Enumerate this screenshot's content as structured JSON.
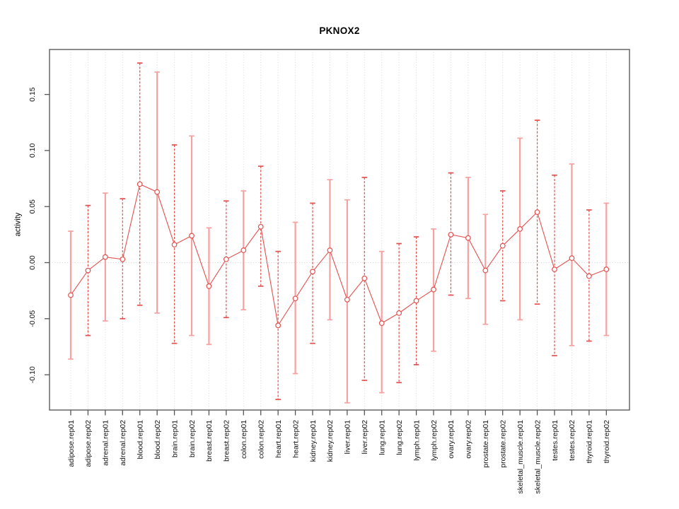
{
  "chart_data": {
    "type": "errorbar",
    "title": "PKNOX2",
    "ylabel": "activity",
    "xlabel": "",
    "legend_position": "none",
    "grid": {
      "vertical_per_category": true,
      "zero_line_dotted": true
    },
    "ylim": [
      -0.132,
      0.192
    ],
    "yticks": [
      "-0.10",
      "-0.05",
      "0.00",
      "0.05",
      "0.10",
      "0.15"
    ],
    "categories": [
      "adipose.rep01",
      "adipose.rep02",
      "adrenal.rep01",
      "adrenal.rep02",
      "blood.rep01",
      "blood.rep02",
      "brain.rep01",
      "brain.rep02",
      "breast.rep01",
      "breast.rep02",
      "colon.rep01",
      "colon.rep02",
      "heart.rep01",
      "heart.rep02",
      "kidney.rep01",
      "kidney.rep02",
      "liver.rep01",
      "liver.rep02",
      "lung.rep01",
      "lung.rep02",
      "lymph.rep01",
      "lymph.rep02",
      "ovary.rep01",
      "ovary.rep02",
      "prostate.rep01",
      "prostate.rep02",
      "skeletal_muscle.rep01",
      "skeletal_muscle.rep02",
      "testes.rep01",
      "testes.rep02",
      "thyroid.rep01",
      "thyroid.rep02"
    ],
    "series": [
      {
        "name": "activity",
        "marker": "open-circle",
        "connected": true,
        "points": [
          {
            "category": "adipose.rep01",
            "value": -0.029,
            "lower": -0.086,
            "upper": 0.028,
            "stem_style": "solid"
          },
          {
            "category": "adipose.rep02",
            "value": -0.007,
            "lower": -0.065,
            "upper": 0.051,
            "stem_style": "dashed"
          },
          {
            "category": "adrenal.rep01",
            "value": 0.005,
            "lower": -0.052,
            "upper": 0.062,
            "stem_style": "solid"
          },
          {
            "category": "adrenal.rep02",
            "value": 0.003,
            "lower": -0.05,
            "upper": 0.057,
            "stem_style": "dashed"
          },
          {
            "category": "blood.rep01",
            "value": 0.07,
            "lower": -0.038,
            "upper": 0.178,
            "stem_style": "dashed"
          },
          {
            "category": "blood.rep02",
            "value": 0.063,
            "lower": -0.045,
            "upper": 0.17,
            "stem_style": "solid"
          },
          {
            "category": "brain.rep01",
            "value": 0.016,
            "lower": -0.072,
            "upper": 0.105,
            "stem_style": "dashed"
          },
          {
            "category": "brain.rep02",
            "value": 0.024,
            "lower": -0.065,
            "upper": 0.113,
            "stem_style": "solid"
          },
          {
            "category": "breast.rep01",
            "value": -0.021,
            "lower": -0.073,
            "upper": 0.031,
            "stem_style": "solid"
          },
          {
            "category": "breast.rep02",
            "value": 0.003,
            "lower": -0.049,
            "upper": 0.055,
            "stem_style": "dashed"
          },
          {
            "category": "colon.rep01",
            "value": 0.011,
            "lower": -0.042,
            "upper": 0.064,
            "stem_style": "solid"
          },
          {
            "category": "colon.rep02",
            "value": 0.032,
            "lower": -0.021,
            "upper": 0.086,
            "stem_style": "dashed"
          },
          {
            "category": "heart.rep01",
            "value": -0.056,
            "lower": -0.122,
            "upper": 0.01,
            "stem_style": "dashed"
          },
          {
            "category": "heart.rep02",
            "value": -0.032,
            "lower": -0.099,
            "upper": 0.036,
            "stem_style": "solid"
          },
          {
            "category": "kidney.rep01",
            "value": -0.008,
            "lower": -0.072,
            "upper": 0.053,
            "stem_style": "dashed"
          },
          {
            "category": "kidney.rep02",
            "value": 0.011,
            "lower": -0.051,
            "upper": 0.074,
            "stem_style": "solid"
          },
          {
            "category": "liver.rep01",
            "value": -0.033,
            "lower": -0.125,
            "upper": 0.056,
            "stem_style": "solid"
          },
          {
            "category": "liver.rep02",
            "value": -0.014,
            "lower": -0.105,
            "upper": 0.076,
            "stem_style": "dashed"
          },
          {
            "category": "lung.rep01",
            "value": -0.054,
            "lower": -0.116,
            "upper": 0.01,
            "stem_style": "solid"
          },
          {
            "category": "lung.rep02",
            "value": -0.045,
            "lower": -0.107,
            "upper": 0.017,
            "stem_style": "dashed"
          },
          {
            "category": "lymph.rep01",
            "value": -0.034,
            "lower": -0.091,
            "upper": 0.023,
            "stem_style": "dashed"
          },
          {
            "category": "lymph.rep02",
            "value": -0.024,
            "lower": -0.079,
            "upper": 0.03,
            "stem_style": "solid"
          },
          {
            "category": "ovary.rep01",
            "value": 0.025,
            "lower": -0.029,
            "upper": 0.08,
            "stem_style": "dashed"
          },
          {
            "category": "ovary.rep02",
            "value": 0.022,
            "lower": -0.032,
            "upper": 0.076,
            "stem_style": "solid"
          },
          {
            "category": "prostate.rep01",
            "value": -0.007,
            "lower": -0.055,
            "upper": 0.043,
            "stem_style": "solid"
          },
          {
            "category": "prostate.rep02",
            "value": 0.015,
            "lower": -0.034,
            "upper": 0.064,
            "stem_style": "dashed"
          },
          {
            "category": "skeletal_muscle.rep01",
            "value": 0.03,
            "lower": -0.051,
            "upper": 0.111,
            "stem_style": "solid"
          },
          {
            "category": "skeletal_muscle.rep02",
            "value": 0.045,
            "lower": -0.037,
            "upper": 0.127,
            "stem_style": "dashed"
          },
          {
            "category": "testes.rep01",
            "value": -0.006,
            "lower": -0.083,
            "upper": 0.078,
            "stem_style": "dashed"
          },
          {
            "category": "testes.rep02",
            "value": 0.004,
            "lower": -0.074,
            "upper": 0.088,
            "stem_style": "solid"
          },
          {
            "category": "thyroid.rep01",
            "value": -0.012,
            "lower": -0.07,
            "upper": 0.047,
            "stem_style": "dashed"
          },
          {
            "category": "thyroid.rep02",
            "value": -0.006,
            "lower": -0.065,
            "upper": 0.053,
            "stem_style": "solid"
          }
        ]
      }
    ]
  },
  "colors": {
    "line_red": "#e4504e",
    "stem_pink": "#f7a1a1",
    "grid_gray": "#d8d8d8",
    "zero_line_gray": "#d0d0d0",
    "axis_gray": "#666666",
    "tick_gray": "#555555",
    "label_black": "#111111",
    "background": "#ffffff",
    "marker_fill": "#ffffff"
  }
}
